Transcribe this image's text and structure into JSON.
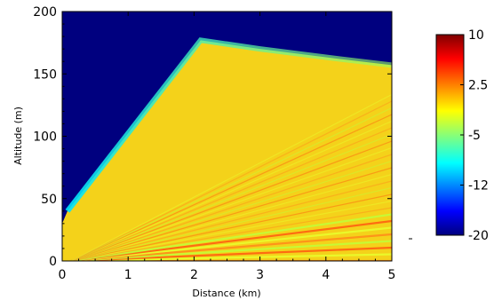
{
  "chart_data": {
    "type": "heatmap",
    "title": "",
    "xlabel": "Distance (km)",
    "ylabel": "Altitude (m)",
    "xlim": [
      0,
      5
    ],
    "ylim": [
      0,
      200
    ],
    "x_ticks": [
      "0",
      "1",
      "2",
      "3",
      "4",
      "5"
    ],
    "y_ticks": [
      "0",
      "50",
      "100",
      "150",
      "200"
    ],
    "colorbar": {
      "range": [
        -20,
        10
      ],
      "ticks": [
        "10",
        "2.5",
        "-5",
        "-12",
        "-20"
      ],
      "colormap": "jet"
    },
    "field": {
      "description_free": true,
      "source_x_km": 0,
      "source_alt_m": 30,
      "upper_edge": [
        {
          "x": 0.08,
          "y": 40
        },
        {
          "x": 2.1,
          "y": 177
        },
        {
          "x": 3.0,
          "y": 170
        },
        {
          "x": 4.2,
          "y": 162
        },
        {
          "x": 5.0,
          "y": 157
        }
      ],
      "interior_level": 2.5,
      "background_level": -20
    }
  }
}
